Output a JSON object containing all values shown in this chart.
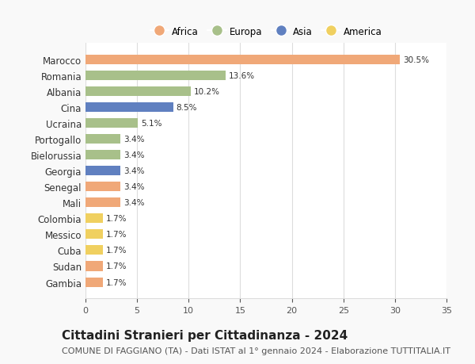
{
  "categories": [
    "Marocco",
    "Romania",
    "Albania",
    "Cina",
    "Ucraina",
    "Portogallo",
    "Bielorussia",
    "Georgia",
    "Senegal",
    "Mali",
    "Colombia",
    "Messico",
    "Cuba",
    "Sudan",
    "Gambia"
  ],
  "values": [
    30.5,
    13.6,
    10.2,
    8.5,
    5.1,
    3.4,
    3.4,
    3.4,
    3.4,
    3.4,
    1.7,
    1.7,
    1.7,
    1.7,
    1.7
  ],
  "continents": [
    "Africa",
    "Europa",
    "Europa",
    "Asia",
    "Europa",
    "Europa",
    "Europa",
    "Asia",
    "Africa",
    "Africa",
    "America",
    "America",
    "America",
    "Africa",
    "Africa"
  ],
  "colors": {
    "Africa": "#F0A878",
    "Europa": "#A8C08A",
    "Asia": "#6080C0",
    "America": "#F0D060"
  },
  "xlim": [
    0,
    35
  ],
  "xticks": [
    0,
    5,
    10,
    15,
    20,
    25,
    30,
    35
  ],
  "title": "Cittadini Stranieri per Cittadinanza - 2024",
  "subtitle": "COMUNE DI FAGGIANO (TA) - Dati ISTAT al 1° gennaio 2024 - Elaborazione TUTTITALIA.IT",
  "title_fontsize": 11,
  "subtitle_fontsize": 8,
  "background_color": "#f9f9f9",
  "bar_background": "#ffffff",
  "grid_color": "#dddddd",
  "legend_order": [
    "Africa",
    "Europa",
    "Asia",
    "America"
  ]
}
